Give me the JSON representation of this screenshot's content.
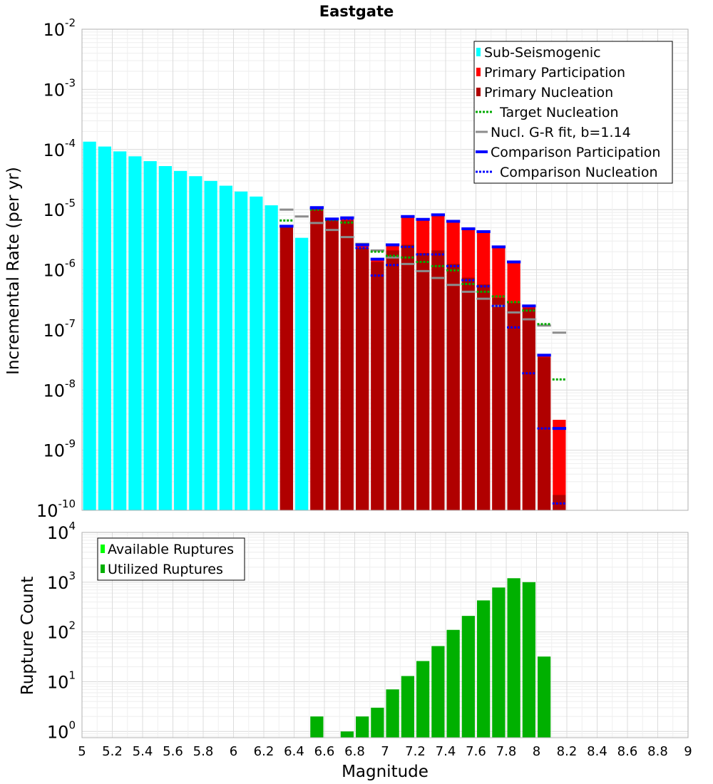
{
  "chart_data": [
    {
      "type": "bar",
      "title": "Eastgate",
      "xlabel": "",
      "ylabel": "Incremental Rate (per yr)",
      "y_scale": "log",
      "ylim": [
        1e-10,
        0.01
      ],
      "xlim": [
        5,
        9
      ],
      "y_tick_labels": [
        {
          "exp": -10,
          "base": "10",
          "sup": "-10"
        },
        {
          "exp": -9,
          "base": "10",
          "sup": "-9"
        },
        {
          "exp": -8,
          "base": "10",
          "sup": "-8"
        },
        {
          "exp": -7,
          "base": "10",
          "sup": "-7"
        },
        {
          "exp": -6,
          "base": "10",
          "sup": "-6"
        },
        {
          "exp": -5,
          "base": "10",
          "sup": "-5"
        },
        {
          "exp": -4,
          "base": "10",
          "sup": "-4"
        },
        {
          "exp": -3,
          "base": "10",
          "sup": "-3"
        },
        {
          "exp": -2,
          "base": "10",
          "sup": "-2"
        }
      ],
      "grid": true,
      "legend_position": "top-right",
      "bin_width": 0.1,
      "series": [
        {
          "name": "Sub-Seismogenic",
          "kind": "bar",
          "color": "#00ffff",
          "x": [
            5.05,
            5.15,
            5.25,
            5.35,
            5.45,
            5.55,
            5.65,
            5.75,
            5.85,
            5.95,
            6.05,
            6.15,
            6.25,
            6.45
          ],
          "values": [
            0.000135,
            0.000112,
            9.3e-05,
            7.7e-05,
            6.4e-05,
            5.3e-05,
            4.4e-05,
            3.6e-05,
            3e-05,
            2.5e-05,
            2e-05,
            1.65e-05,
            1.18e-05,
            3.4e-06
          ]
        },
        {
          "name": "Primary Participation",
          "kind": "bar",
          "color": "#ff0000",
          "x": [
            6.35,
            6.55,
            6.65,
            6.75,
            6.85,
            6.95,
            7.05,
            7.15,
            7.25,
            7.35,
            7.45,
            7.55,
            7.65,
            7.75,
            7.85,
            7.95,
            8.05,
            8.15
          ],
          "values": [
            5.3e-06,
            1.05e-05,
            7e-06,
            7.1e-06,
            2.6e-06,
            1.5e-06,
            2.6e-06,
            7.5e-06,
            6.8e-06,
            8.1e-06,
            6.3e-06,
            4.8e-06,
            4.2e-06,
            2.35e-06,
            1.35e-06,
            2.5e-07,
            3.8e-08,
            3.2e-09
          ]
        },
        {
          "name": "Primary Nucleation",
          "kind": "bar",
          "color": "#b00000",
          "x": [
            6.35,
            6.55,
            6.65,
            6.75,
            6.85,
            6.95,
            7.05,
            7.15,
            7.25,
            7.35,
            7.45,
            7.55,
            7.65,
            7.75,
            7.85,
            7.95,
            8.05,
            8.15
          ],
          "values": [
            5.3e-06,
            1.05e-05,
            6.8e-06,
            6.6e-06,
            2.3e-06,
            1.35e-06,
            2.1e-06,
            2.6e-06,
            1.9e-06,
            2.1e-06,
            1.25e-06,
            7.4e-07,
            5.7e-07,
            3.4e-07,
            2.8e-07,
            2.3e-07,
            3.5e-08,
            1.8e-10
          ]
        },
        {
          "name": "Target Nucleation",
          "kind": "hline-dotted",
          "color": "#00aa00",
          "x": [
            6.35,
            6.55,
            6.65,
            6.75,
            6.85,
            6.95,
            7.05,
            7.15,
            7.25,
            7.35,
            7.45,
            7.55,
            7.65,
            7.75,
            7.85,
            7.95,
            8.05,
            8.15
          ],
          "values": [
            6.6e-06,
            1e-05,
            6.7e-06,
            6.1e-06,
            2.3e-06,
            2e-06,
            1.7e-06,
            1.6e-06,
            1.35e-06,
            1.15e-06,
            9.8e-07,
            5.8e-07,
            4.3e-07,
            3.6e-07,
            2.9e-07,
            2.1e-07,
            1.25e-07,
            1.5e-08
          ]
        },
        {
          "name": "Nucl. G-R fit, b=1.14",
          "kind": "hline",
          "color": "#8c8c8c",
          "x": [
            6.35,
            6.45,
            6.55,
            6.65,
            6.75,
            6.85,
            6.95,
            7.05,
            7.15,
            7.25,
            7.35,
            7.45,
            7.55,
            7.65,
            7.75,
            7.85,
            7.95,
            8.05,
            8.15
          ],
          "values": [
            1e-05,
            7.7e-06,
            6e-06,
            4.6e-06,
            3.5e-06,
            2.7e-06,
            2.1e-06,
            1.6e-06,
            1.25e-06,
            9.5e-07,
            7.3e-07,
            5.6e-07,
            4.3e-07,
            3.3e-07,
            2.5e-07,
            1.95e-07,
            1.5e-07,
            1.18e-07,
            9e-08
          ]
        },
        {
          "name": "Comparison Participation",
          "kind": "hline",
          "color": "#0000ff",
          "x": [
            6.35,
            6.55,
            6.65,
            6.75,
            6.85,
            6.95,
            7.05,
            7.15,
            7.25,
            7.35,
            7.45,
            7.55,
            7.65,
            7.75,
            7.85,
            7.95,
            8.05,
            8.15
          ],
          "values": [
            5.3e-06,
            1.08e-05,
            7e-06,
            7.3e-06,
            2.6e-06,
            1.5e-06,
            2.6e-06,
            7.7e-06,
            6.9e-06,
            8.2e-06,
            6.4e-06,
            4.8e-06,
            4.3e-06,
            2.4e-06,
            1.35e-06,
            2.5e-07,
            3.8e-08,
            2.3e-09
          ]
        },
        {
          "name": "Comparison Nucleation",
          "kind": "hline-dotted",
          "color": "#0000ff",
          "x": [
            6.35,
            6.55,
            6.65,
            6.75,
            6.85,
            6.95,
            7.05,
            7.15,
            7.25,
            7.35,
            7.45,
            7.55,
            7.65,
            7.75,
            7.85,
            7.95,
            8.05,
            8.15
          ],
          "values": [
            5.3e-06,
            1.05e-05,
            6.9e-06,
            7e-06,
            2.3e-06,
            8e-07,
            1.2e-06,
            2.4e-06,
            1.8e-06,
            1.8e-06,
            1.15e-06,
            6.7e-07,
            5.3e-07,
            2.5e-07,
            1.1e-07,
            1.9e-08,
            2.3e-09,
            1.3e-10
          ]
        }
      ],
      "legend": [
        {
          "label": "Sub-Seismogenic",
          "style": "box",
          "color": "#00ffff"
        },
        {
          "label": "Primary Participation",
          "style": "box",
          "color": "#ff0000"
        },
        {
          "label": "Primary Nucleation",
          "style": "box",
          "color": "#b00000"
        },
        {
          "label": "Target Nucleation",
          "style": "dotted",
          "color": "#00aa00"
        },
        {
          "label": "Nucl. G-R fit, b=1.14",
          "style": "line",
          "color": "#8c8c8c"
        },
        {
          "label": "Comparison Participation",
          "style": "line",
          "color": "#0000ff"
        },
        {
          "label": "Comparison Nucleation",
          "style": "dotted",
          "color": "#0000ff"
        }
      ]
    },
    {
      "type": "bar",
      "title": "",
      "xlabel": "Magnitude",
      "ylabel": "Rupture Count",
      "y_scale": "log",
      "ylim": [
        0.75,
        10000
      ],
      "xlim": [
        5,
        9
      ],
      "x_tick_labels": [
        "5",
        "5.2",
        "5.4",
        "5.6",
        "5.8",
        "6",
        "6.2",
        "6.4",
        "6.6",
        "6.8",
        "7",
        "7.2",
        "7.4",
        "7.6",
        "7.8",
        "8",
        "8.2",
        "8.4",
        "8.6",
        "8.8",
        "9"
      ],
      "y_tick_labels": [
        {
          "exp": 0,
          "base": "10",
          "sup": "0"
        },
        {
          "exp": 1,
          "base": "10",
          "sup": "1"
        },
        {
          "exp": 2,
          "base": "10",
          "sup": "2"
        },
        {
          "exp": 3,
          "base": "10",
          "sup": "3"
        },
        {
          "exp": 4,
          "base": "10",
          "sup": "4"
        }
      ],
      "grid": true,
      "legend_position": "top-left",
      "bin_width": 0.1,
      "series": [
        {
          "name": "Utilized Ruptures",
          "kind": "bar",
          "color": "#00b000",
          "x": [
            6.55,
            6.75,
            6.85,
            6.95,
            7.05,
            7.15,
            7.25,
            7.35,
            7.45,
            7.55,
            7.65,
            7.75,
            7.85,
            7.95,
            8.05
          ],
          "values": [
            2,
            1,
            2,
            3,
            7,
            13,
            26,
            52,
            110,
            210,
            430,
            780,
            1200,
            1000,
            32
          ]
        }
      ],
      "legend": [
        {
          "label": "Available Ruptures",
          "style": "box",
          "color": "#00ff00"
        },
        {
          "label": "Utilized Ruptures",
          "style": "box",
          "color": "#00b000"
        }
      ]
    }
  ]
}
